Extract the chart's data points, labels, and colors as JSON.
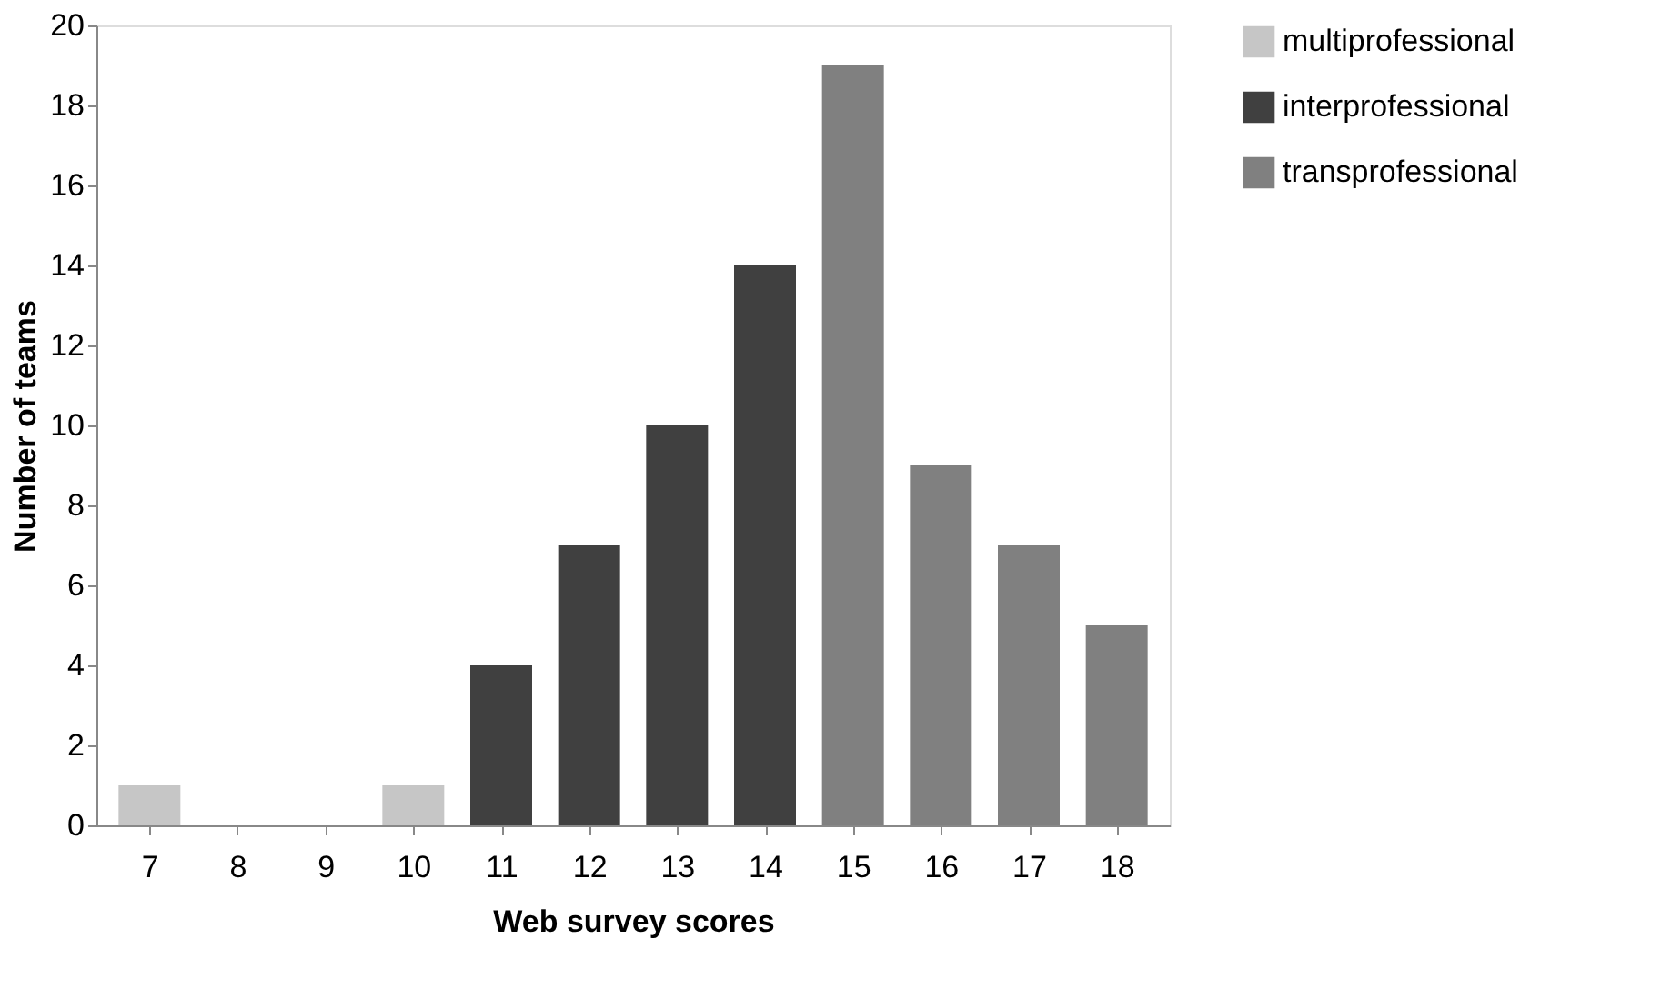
{
  "chart_data": {
    "type": "bar",
    "xlabel": "Web survey scores",
    "ylabel": "Number of teams",
    "categories": [
      "7",
      "8",
      "9",
      "10",
      "11",
      "12",
      "13",
      "14",
      "15",
      "16",
      "17",
      "18"
    ],
    "series": [
      {
        "name": "multiprofessional",
        "color": "#c6c6c6",
        "values": [
          1,
          0,
          0,
          1,
          null,
          null,
          null,
          null,
          null,
          null,
          null,
          null
        ]
      },
      {
        "name": "interprofessional",
        "color": "#404040",
        "values": [
          null,
          null,
          null,
          null,
          4,
          7,
          10,
          14,
          null,
          null,
          null,
          null
        ]
      },
      {
        "name": "transprofessional",
        "color": "#808080",
        "values": [
          null,
          null,
          null,
          null,
          null,
          null,
          null,
          null,
          19,
          9,
          7,
          5
        ]
      }
    ],
    "ylim": [
      0,
      20
    ],
    "yticks": [
      0,
      2,
      4,
      6,
      8,
      10,
      12,
      14,
      16,
      18,
      20
    ],
    "grid": false,
    "legend": "right"
  }
}
